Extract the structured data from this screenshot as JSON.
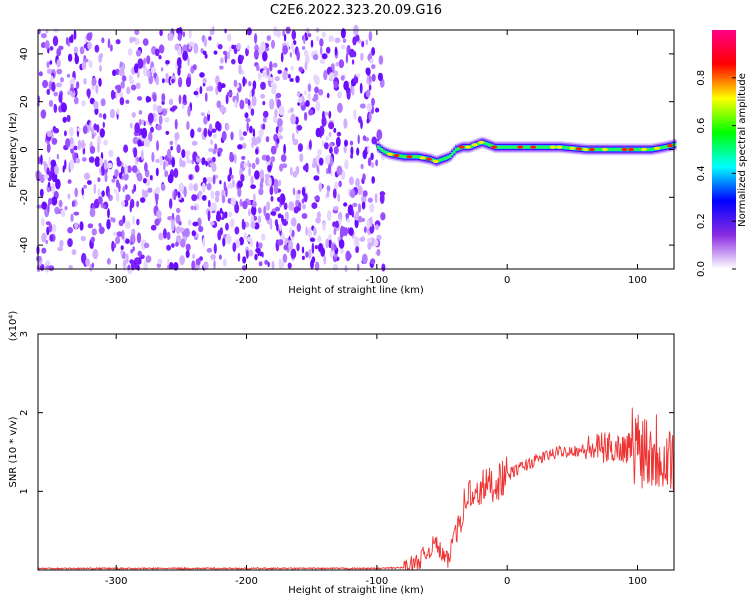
{
  "title": "C2E6.2022.323.20.09.G16",
  "chart_data": [
    {
      "type": "heatmap",
      "xlabel": "Height of straight line (km)",
      "ylabel": "Frequency (Hz)",
      "xlim": [
        -360,
        128
      ],
      "ylim": [
        -50,
        50
      ],
      "x_ticks": [
        -300,
        -200,
        -100,
        0,
        100
      ],
      "y_ticks": [
        -40,
        -20,
        0,
        20,
        40
      ],
      "x_tick_labels": [
        "-300",
        "-200",
        "-100",
        "0",
        "100"
      ],
      "y_tick_labels": [
        "-40",
        "-20",
        "0",
        "20",
        "40"
      ],
      "noise_region_x": [
        -360,
        -95
      ],
      "signal_track": {
        "x": [
          -100,
          -95,
          -90,
          -80,
          -70,
          -60,
          -55,
          -50,
          -45,
          -40,
          -35,
          -30,
          -25,
          -20,
          -15,
          -10,
          0,
          20,
          40,
          60,
          80,
          100,
          110,
          120,
          128
        ],
        "y": [
          1,
          -1,
          -2,
          -3,
          -3,
          -4,
          -5,
          -4,
          -3,
          0,
          1,
          1,
          2,
          3,
          2,
          1,
          1,
          1,
          1,
          0,
          0,
          0,
          0,
          1,
          2
        ]
      },
      "colorbar": {
        "label": "Normalized spectral amplitude",
        "range": [
          0,
          1
        ],
        "ticks": [
          0.0,
          0.2,
          0.4,
          0.6,
          0.8
        ],
        "tick_labels": [
          "0.0",
          "0.2",
          "0.4",
          "0.6",
          "0.8"
        ],
        "colors": [
          "#ffffff",
          "#8a2be2",
          "#0000ff",
          "#00ffff",
          "#00ff00",
          "#ffff00",
          "#ff0000",
          "#ff0088"
        ]
      }
    },
    {
      "type": "line",
      "xlabel": "Height of straight line (km)",
      "ylabel": "SNR (10 * v/v)",
      "y_multiplier_label": "(x10⁴)",
      "xlim": [
        -360,
        128
      ],
      "ylim": [
        0,
        3
      ],
      "x_ticks": [
        -300,
        -200,
        -100,
        0,
        100
      ],
      "y_ticks": [
        1,
        2,
        3
      ],
      "x_tick_labels": [
        "-300",
        "-200",
        "-100",
        "0",
        "100"
      ],
      "y_tick_labels": [
        "1",
        "2",
        "3"
      ],
      "color": "#ee3333",
      "series": [
        {
          "x": [
            -360,
            -300,
            -200,
            -120,
            -100,
            -80,
            -70,
            -60,
            -55,
            -50,
            -45,
            -40,
            -35,
            -30,
            -25,
            -20,
            -10,
            0,
            10,
            20,
            30,
            40,
            50,
            60,
            70,
            80,
            90,
            100,
            110,
            120,
            125,
            128
          ],
          "y": [
            0.02,
            0.02,
            0.02,
            0.02,
            0.02,
            0.03,
            0.08,
            0.25,
            0.35,
            0.2,
            0.1,
            0.55,
            0.7,
            1.0,
            0.85,
            1.05,
            1.1,
            1.2,
            1.3,
            1.38,
            1.45,
            1.5,
            1.52,
            1.52,
            1.55,
            1.55,
            1.55,
            1.6,
            1.55,
            1.5,
            1.45,
            1.4
          ]
        }
      ]
    }
  ]
}
